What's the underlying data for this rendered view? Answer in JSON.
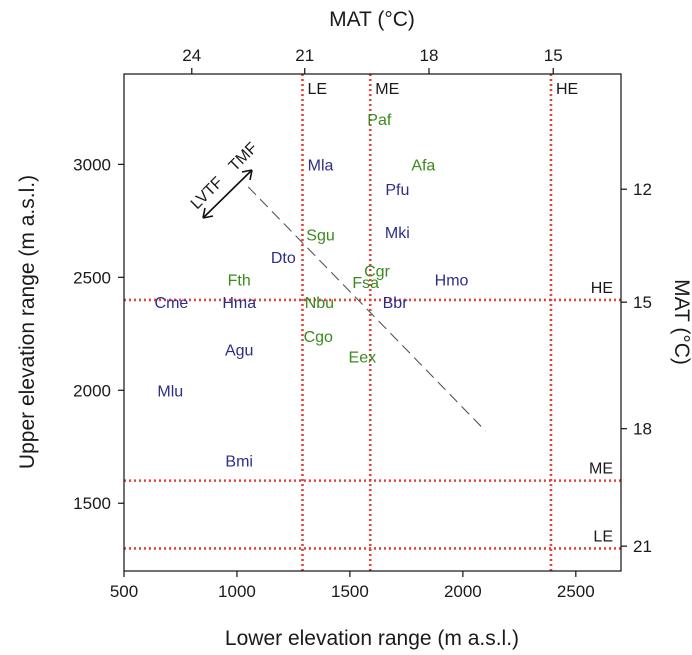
{
  "chart_data": {
    "type": "scatter",
    "xlabel": "Lower elevation range (m a.s.l.)",
    "ylabel": "Upper elevation range (m a.s.l.)",
    "top_axis_label": "MAT (°C)",
    "right_axis_label": "MAT (°C)",
    "xlim": [
      500,
      2700
    ],
    "ylim": [
      1200,
      3400
    ],
    "x_ticks": [
      500,
      1000,
      1500,
      2000,
      2500
    ],
    "y_ticks": [
      1500,
      2000,
      2500,
      3000
    ],
    "top_ticks": [
      {
        "label": "24",
        "at_elevation": 800
      },
      {
        "label": "21",
        "at_elevation": 1300
      },
      {
        "label": "18",
        "at_elevation": 1850
      },
      {
        "label": "15",
        "at_elevation": 2400
      }
    ],
    "right_ticks": [
      {
        "label": "12",
        "at_elevation": 2890
      },
      {
        "label": "15",
        "at_elevation": 2390
      },
      {
        "label": "18",
        "at_elevation": 1830
      },
      {
        "label": "21",
        "at_elevation": 1310
      }
    ],
    "zone_lines": {
      "vertical": [
        {
          "label": "LE",
          "x": 1290
        },
        {
          "label": "ME",
          "x": 1590
        },
        {
          "label": "HE",
          "x": 2390
        }
      ],
      "horizontal": [
        {
          "label": "HE",
          "y": 2400
        },
        {
          "label": "ME",
          "y": 1600
        },
        {
          "label": "LE",
          "y": 1300
        }
      ]
    },
    "gradient": {
      "left_label": "LVTF",
      "right_label": "TMF",
      "dashed_line": [
        [
          1050,
          2900
        ],
        [
          2100,
          1820
        ]
      ]
    },
    "series": [
      {
        "color": "#2e2e8a",
        "points": [
          {
            "label": "Mla",
            "x": 1370,
            "y": 3000
          },
          {
            "label": "Pfu",
            "x": 1710,
            "y": 2890
          },
          {
            "label": "Mki",
            "x": 1710,
            "y": 2700
          },
          {
            "label": "Dto",
            "x": 1205,
            "y": 2590
          },
          {
            "label": "Hmo",
            "x": 1950,
            "y": 2490
          },
          {
            "label": "Cme",
            "x": 710,
            "y": 2390
          },
          {
            "label": "Hma",
            "x": 1010,
            "y": 2390
          },
          {
            "label": "Bbr",
            "x": 1700,
            "y": 2390
          },
          {
            "label": "Agu",
            "x": 1010,
            "y": 2180
          },
          {
            "label": "Mlu",
            "x": 705,
            "y": 2000
          },
          {
            "label": "Bmi",
            "x": 1010,
            "y": 1690
          }
        ]
      },
      {
        "color": "#3a8a1e",
        "points": [
          {
            "label": "Paf",
            "x": 1630,
            "y": 3200
          },
          {
            "label": "Afa",
            "x": 1825,
            "y": 3000
          },
          {
            "label": "Sgu",
            "x": 1370,
            "y": 2690
          },
          {
            "label": "Cgr",
            "x": 1620,
            "y": 2530
          },
          {
            "label": "Fsa",
            "x": 1570,
            "y": 2480
          },
          {
            "label": "Fth",
            "x": 1010,
            "y": 2490
          },
          {
            "label": "Nbu",
            "x": 1365,
            "y": 2390
          },
          {
            "label": "Cgo",
            "x": 1360,
            "y": 2240
          },
          {
            "label": "Eex",
            "x": 1555,
            "y": 2150
          }
        ]
      }
    ]
  }
}
